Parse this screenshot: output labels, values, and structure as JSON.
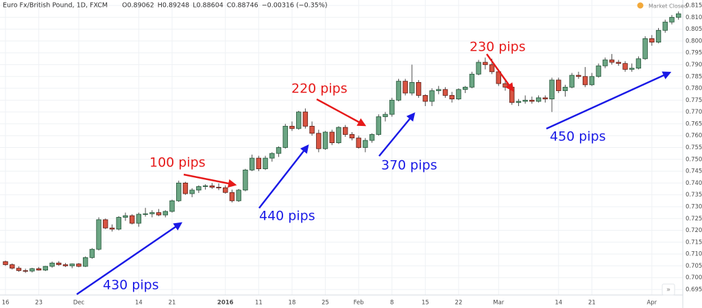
{
  "header": {
    "symbol": "Euro Fx/British Pound, 1D, FXCM",
    "quote": [
      "O0.89062",
      "H0.89248",
      "L0.88604",
      "C0.88746",
      "−0.00316 (−0.35%)"
    ],
    "status": "Market Closed"
  },
  "chart_data": {
    "type": "candlestick",
    "colors": {
      "up": "#6ba583",
      "down": "#d75442"
    },
    "grid": true,
    "categories": [
      "16",
      null,
      null,
      null,
      null,
      "23",
      null,
      null,
      null,
      null,
      null,
      "Dec",
      null,
      null,
      null,
      null,
      null,
      null,
      null,
      null,
      "14",
      null,
      null,
      null,
      null,
      "21",
      null,
      null,
      null,
      null,
      null,
      null,
      null,
      "2016",
      null,
      null,
      null,
      null,
      "11",
      null,
      null,
      null,
      null,
      "18",
      null,
      null,
      null,
      null,
      "25",
      null,
      null,
      null,
      null,
      "Feb",
      null,
      null,
      null,
      null,
      "8",
      null,
      null,
      null,
      null,
      "15",
      null,
      null,
      null,
      null,
      "22",
      null,
      null,
      null,
      null,
      null,
      "Mar",
      null,
      null,
      null,
      null,
      null,
      null,
      null,
      null,
      "14",
      null,
      null,
      null,
      null,
      "21",
      null,
      null,
      null,
      null,
      null,
      null,
      null,
      null,
      "Apr",
      null,
      null,
      null,
      null
    ],
    "ohlc": [
      [
        0.7068,
        0.7072,
        0.705,
        0.7055
      ],
      [
        0.7055,
        0.706,
        0.7035,
        0.704
      ],
      [
        0.704,
        0.7048,
        0.7025,
        0.703
      ],
      [
        0.703,
        0.7038,
        0.702,
        0.7028
      ],
      [
        0.7028,
        0.7042,
        0.7022,
        0.7038
      ],
      [
        0.7038,
        0.7045,
        0.703,
        0.7032
      ],
      [
        0.7032,
        0.705,
        0.7028,
        0.7048
      ],
      [
        0.7048,
        0.7068,
        0.7042,
        0.7062
      ],
      [
        0.7062,
        0.707,
        0.705,
        0.7055
      ],
      [
        0.7055,
        0.7062,
        0.7045,
        0.705
      ],
      [
        0.705,
        0.706,
        0.704,
        0.7058
      ],
      [
        0.7058,
        0.7062,
        0.7044,
        0.7048
      ],
      [
        0.7048,
        0.709,
        0.7045,
        0.7085
      ],
      [
        0.7085,
        0.7125,
        0.708,
        0.712
      ],
      [
        0.712,
        0.7255,
        0.7115,
        0.7245
      ],
      [
        0.7245,
        0.725,
        0.7205,
        0.721
      ],
      [
        0.721,
        0.7225,
        0.7195,
        0.7205
      ],
      [
        0.7205,
        0.726,
        0.72,
        0.7255
      ],
      [
        0.7255,
        0.7275,
        0.724,
        0.7262
      ],
      [
        0.7262,
        0.7268,
        0.7225,
        0.723
      ],
      [
        0.723,
        0.7275,
        0.7215,
        0.7268
      ],
      [
        0.7268,
        0.7295,
        0.7258,
        0.727
      ],
      [
        0.727,
        0.7285,
        0.7255,
        0.7275
      ],
      [
        0.7275,
        0.729,
        0.726,
        0.7265
      ],
      [
        0.7265,
        0.7285,
        0.7255,
        0.728
      ],
      [
        0.728,
        0.733,
        0.7275,
        0.7325
      ],
      [
        0.7325,
        0.741,
        0.732,
        0.74
      ],
      [
        0.74,
        0.7405,
        0.735,
        0.7355
      ],
      [
        0.7355,
        0.7378,
        0.734,
        0.737
      ],
      [
        0.737,
        0.739,
        0.7358,
        0.7385
      ],
      [
        0.7385,
        0.7395,
        0.7372,
        0.7388
      ],
      [
        0.7388,
        0.74,
        0.7375,
        0.7382
      ],
      [
        0.7382,
        0.7398,
        0.737,
        0.738
      ],
      [
        0.738,
        0.739,
        0.7355,
        0.736
      ],
      [
        0.736,
        0.7372,
        0.7318,
        0.7325
      ],
      [
        0.7325,
        0.7375,
        0.732,
        0.737
      ],
      [
        0.737,
        0.746,
        0.7365,
        0.7455
      ],
      [
        0.7455,
        0.752,
        0.745,
        0.7505
      ],
      [
        0.7505,
        0.7515,
        0.745,
        0.746
      ],
      [
        0.746,
        0.7515,
        0.7455,
        0.7505
      ],
      [
        0.7505,
        0.753,
        0.749,
        0.7525
      ],
      [
        0.7525,
        0.7555,
        0.751,
        0.755
      ],
      [
        0.755,
        0.765,
        0.7545,
        0.764
      ],
      [
        0.764,
        0.766,
        0.762,
        0.763
      ],
      [
        0.763,
        0.7705,
        0.7625,
        0.77
      ],
      [
        0.77,
        0.7715,
        0.763,
        0.764
      ],
      [
        0.764,
        0.766,
        0.76,
        0.761
      ],
      [
        0.761,
        0.7625,
        0.753,
        0.7545
      ],
      [
        0.7545,
        0.762,
        0.754,
        0.7615
      ],
      [
        0.7615,
        0.7625,
        0.756,
        0.757
      ],
      [
        0.757,
        0.764,
        0.7565,
        0.7635
      ],
      [
        0.7635,
        0.7645,
        0.7595,
        0.7605
      ],
      [
        0.7605,
        0.7615,
        0.758,
        0.759
      ],
      [
        0.759,
        0.76,
        0.7545,
        0.755
      ],
      [
        0.755,
        0.759,
        0.753,
        0.758
      ],
      [
        0.758,
        0.761,
        0.757,
        0.7605
      ],
      [
        0.7605,
        0.769,
        0.76,
        0.768
      ],
      [
        0.768,
        0.77,
        0.766,
        0.769
      ],
      [
        0.769,
        0.776,
        0.768,
        0.775
      ],
      [
        0.775,
        0.784,
        0.7745,
        0.783
      ],
      [
        0.783,
        0.784,
        0.777,
        0.778
      ],
      [
        0.778,
        0.79,
        0.777,
        0.7825
      ],
      [
        0.7825,
        0.7835,
        0.776,
        0.777
      ],
      [
        0.777,
        0.7775,
        0.7725,
        0.7745
      ],
      [
        0.7745,
        0.78,
        0.7725,
        0.779
      ],
      [
        0.779,
        0.781,
        0.7775,
        0.7795
      ],
      [
        0.7795,
        0.7805,
        0.776,
        0.777
      ],
      [
        0.777,
        0.7785,
        0.774,
        0.7755
      ],
      [
        0.7755,
        0.78,
        0.775,
        0.7795
      ],
      [
        0.7795,
        0.781,
        0.778,
        0.7805
      ],
      [
        0.7805,
        0.787,
        0.78,
        0.786
      ],
      [
        0.786,
        0.792,
        0.7855,
        0.791
      ],
      [
        0.791,
        0.793,
        0.788,
        0.79
      ],
      [
        0.79,
        0.7925,
        0.786,
        0.787
      ],
      [
        0.787,
        0.788,
        0.781,
        0.782
      ],
      [
        0.782,
        0.783,
        0.779,
        0.7805
      ],
      [
        0.7805,
        0.7815,
        0.773,
        0.774
      ],
      [
        0.774,
        0.7755,
        0.7725,
        0.7745
      ],
      [
        0.7745,
        0.777,
        0.7735,
        0.775
      ],
      [
        0.775,
        0.7765,
        0.7735,
        0.7745
      ],
      [
        0.7745,
        0.777,
        0.774,
        0.776
      ],
      [
        0.776,
        0.777,
        0.774,
        0.7755
      ],
      [
        0.7755,
        0.7845,
        0.77,
        0.7835
      ],
      [
        0.7835,
        0.7845,
        0.778,
        0.779
      ],
      [
        0.779,
        0.7815,
        0.7765,
        0.7805
      ],
      [
        0.7805,
        0.7865,
        0.78,
        0.7855
      ],
      [
        0.7855,
        0.787,
        0.784,
        0.785
      ],
      [
        0.785,
        0.789,
        0.7805,
        0.7815
      ],
      [
        0.7815,
        0.7865,
        0.781,
        0.785
      ],
      [
        0.785,
        0.7905,
        0.7845,
        0.7895
      ],
      [
        0.7895,
        0.793,
        0.7885,
        0.792
      ],
      [
        0.792,
        0.7945,
        0.79,
        0.791
      ],
      [
        0.791,
        0.792,
        0.7895,
        0.7905
      ],
      [
        0.7905,
        0.7915,
        0.787,
        0.788
      ],
      [
        0.788,
        0.7905,
        0.787,
        0.7885
      ],
      [
        0.7885,
        0.7935,
        0.788,
        0.7925
      ],
      [
        0.7925,
        0.802,
        0.792,
        0.801
      ],
      [
        0.801,
        0.8025,
        0.798,
        0.7995
      ],
      [
        0.7995,
        0.8055,
        0.799,
        0.8045
      ],
      [
        0.8045,
        0.809,
        0.8035,
        0.808
      ],
      [
        0.808,
        0.811,
        0.807,
        0.81
      ],
      [
        0.81,
        0.8125,
        0.809,
        0.8115
      ]
    ],
    "ylim": [
      0.695,
      0.815
    ],
    "yticks": [
      {
        "value": 0.695,
        "label": "0.69500"
      },
      {
        "value": 0.7,
        "label": "0.70000"
      },
      {
        "value": 0.705,
        "label": "0.70500"
      },
      {
        "value": 0.71,
        "label": "0.71000"
      },
      {
        "value": 0.715,
        "label": "0.71500"
      },
      {
        "value": 0.72,
        "label": "0.72000"
      },
      {
        "value": 0.725,
        "label": "0.72500"
      },
      {
        "value": 0.73,
        "label": "0.73000"
      },
      {
        "value": 0.735,
        "label": "0.73500"
      },
      {
        "value": 0.74,
        "label": "0.74000"
      },
      {
        "value": 0.745,
        "label": "0.74500"
      },
      {
        "value": 0.75,
        "label": "0.75000"
      },
      {
        "value": 0.755,
        "label": "0.75500"
      },
      {
        "value": 0.76,
        "label": "0.76000"
      },
      {
        "value": 0.765,
        "label": "0.76500"
      },
      {
        "value": 0.77,
        "label": "0.77000"
      },
      {
        "value": 0.775,
        "label": "0.77500"
      },
      {
        "value": 0.78,
        "label": "0.78000"
      },
      {
        "value": 0.785,
        "label": "0.78500"
      },
      {
        "value": 0.79,
        "label": "0.79000"
      },
      {
        "value": 0.795,
        "label": "0.79500"
      },
      {
        "value": 0.8,
        "label": "0.80000"
      },
      {
        "value": 0.805,
        "label": "0.80500"
      },
      {
        "value": 0.81,
        "label": "0.81000"
      },
      {
        "value": 0.815,
        "label": "0.81500"
      }
    ],
    "annotations": [
      {
        "text": "430 pips",
        "color": "#1a1ae6"
      },
      {
        "text": "440 pips",
        "color": "#1a1ae6"
      },
      {
        "text": "370 pips",
        "color": "#1a1ae6"
      },
      {
        "text": "450 pips",
        "color": "#1a1ae6"
      },
      {
        "text": "100 pips",
        "color": "#e61a1a"
      },
      {
        "text": "220 pips",
        "color": "#e61a1a"
      },
      {
        "text": "230 pips",
        "color": "#e61a1a"
      }
    ]
  }
}
